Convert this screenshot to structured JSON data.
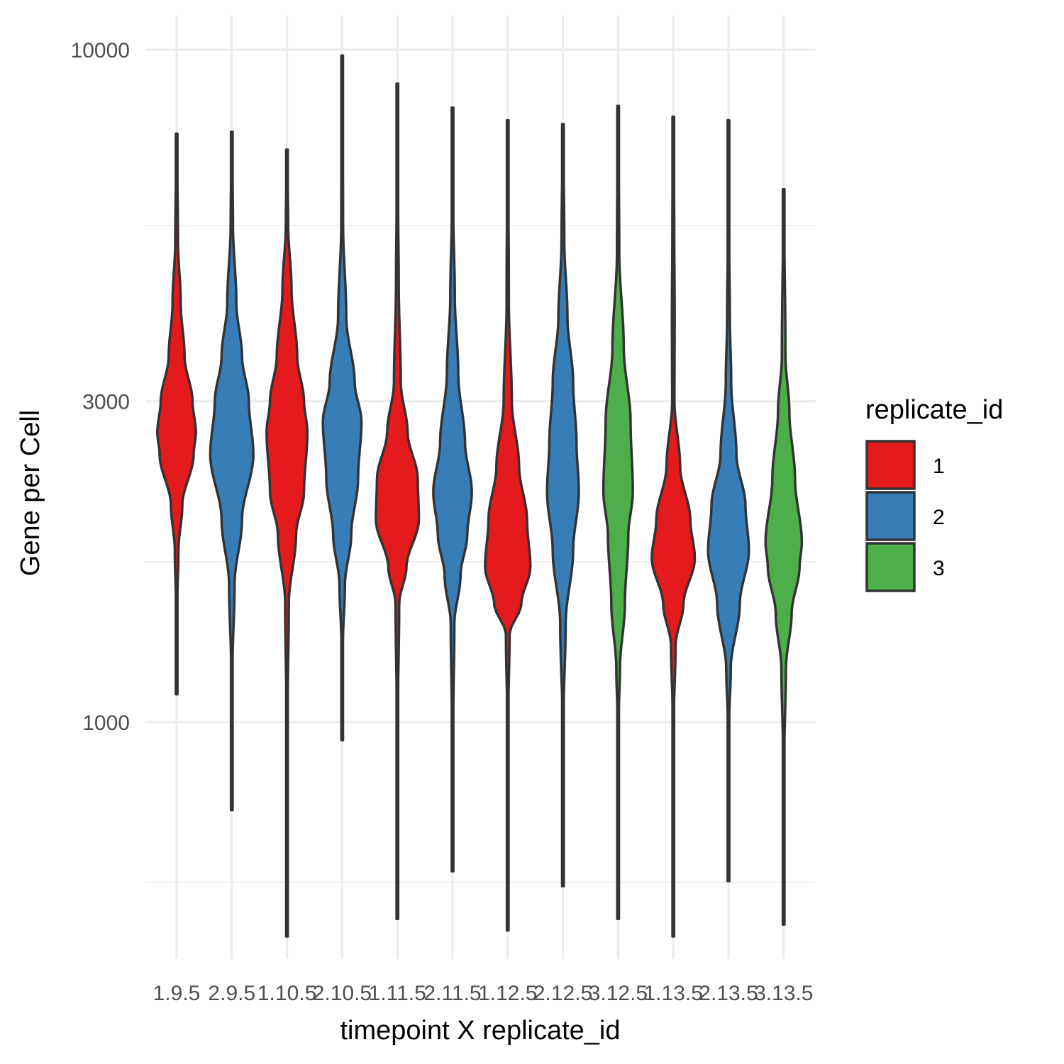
{
  "chart_data": {
    "type": "violin",
    "xlabel": "timepoint X replicate_id",
    "ylabel": "Gene per Cell",
    "y_scale": "log10",
    "ylim": [
      400,
      11000
    ],
    "y_ticks": [
      {
        "value": 1000,
        "label": "1000"
      },
      {
        "value": 3000,
        "label": "3000"
      },
      {
        "value": 10000,
        "label": "10000"
      }
    ],
    "grid": true,
    "legend": {
      "title": "replicate_id",
      "position": "right",
      "entries": [
        {
          "label": "1",
          "color": "#e41a1c"
        },
        {
          "label": "2",
          "color": "#377eb8"
        },
        {
          "label": "3",
          "color": "#4daf4a"
        }
      ]
    },
    "outline_color": "#333333",
    "categories": [
      "1.9.5",
      "2.9.5",
      "1.10.5",
      "2.10.5",
      "1.11.5",
      "2.11.5",
      "1.12.5",
      "2.12.5",
      "3.12.5",
      "1.13.5",
      "2.13.5",
      "3.13.5"
    ],
    "violins": [
      {
        "category": "1.9.5",
        "replicate": "1",
        "min": 1100,
        "max": 7500,
        "profile": [
          [
            1100,
            0.02
          ],
          [
            1500,
            0.03
          ],
          [
            1800,
            0.08
          ],
          [
            2100,
            0.25
          ],
          [
            2500,
            0.75
          ],
          [
            2700,
            0.85
          ],
          [
            3000,
            0.7
          ],
          [
            3500,
            0.35
          ],
          [
            4200,
            0.18
          ],
          [
            5200,
            0.06
          ],
          [
            7500,
            0.01
          ]
        ]
      },
      {
        "category": "2.9.5",
        "replicate": "2",
        "min": 740,
        "max": 7550,
        "profile": [
          [
            740,
            0.02
          ],
          [
            1200,
            0.03
          ],
          [
            1600,
            0.12
          ],
          [
            2000,
            0.45
          ],
          [
            2500,
            0.95
          ],
          [
            3000,
            0.75
          ],
          [
            3500,
            0.45
          ],
          [
            4200,
            0.2
          ],
          [
            5500,
            0.05
          ],
          [
            7550,
            0.01
          ]
        ]
      },
      {
        "category": "1.10.5",
        "replicate": "1",
        "min": 480,
        "max": 7100,
        "profile": [
          [
            480,
            0.02
          ],
          [
            1000,
            0.02
          ],
          [
            1500,
            0.08
          ],
          [
            1900,
            0.4
          ],
          [
            2200,
            0.75
          ],
          [
            2700,
            0.9
          ],
          [
            3000,
            0.75
          ],
          [
            3500,
            0.45
          ],
          [
            4400,
            0.2
          ],
          [
            5500,
            0.05
          ],
          [
            7100,
            0.01
          ]
        ]
      },
      {
        "category": "2.10.5",
        "replicate": "2",
        "min": 940,
        "max": 9800,
        "profile": [
          [
            940,
            0.02
          ],
          [
            1300,
            0.03
          ],
          [
            1600,
            0.12
          ],
          [
            1900,
            0.4
          ],
          [
            2300,
            0.7
          ],
          [
            2800,
            0.85
          ],
          [
            3200,
            0.55
          ],
          [
            4000,
            0.18
          ],
          [
            5500,
            0.04
          ],
          [
            9800,
            0.01
          ]
        ]
      },
      {
        "category": "1.11.5",
        "replicate": "1",
        "min": 510,
        "max": 8900,
        "profile": [
          [
            510,
            0.02
          ],
          [
            1000,
            0.02
          ],
          [
            1500,
            0.08
          ],
          [
            1700,
            0.4
          ],
          [
            2000,
            0.95
          ],
          [
            2300,
            0.9
          ],
          [
            2700,
            0.45
          ],
          [
            3200,
            0.15
          ],
          [
            4500,
            0.06
          ],
          [
            6000,
            0.03
          ],
          [
            8900,
            0.01
          ]
        ]
      },
      {
        "category": "2.11.5",
        "replicate": "2",
        "min": 600,
        "max": 8200,
        "profile": [
          [
            600,
            0.02
          ],
          [
            1000,
            0.03
          ],
          [
            1400,
            0.08
          ],
          [
            1650,
            0.35
          ],
          [
            1900,
            0.65
          ],
          [
            2200,
            0.85
          ],
          [
            2600,
            0.55
          ],
          [
            3300,
            0.25
          ],
          [
            4300,
            0.1
          ],
          [
            5800,
            0.03
          ],
          [
            8200,
            0.01
          ]
        ]
      },
      {
        "category": "1.12.5",
        "replicate": "1",
        "min": 490,
        "max": 7850,
        "profile": [
          [
            490,
            0.02
          ],
          [
            1000,
            0.02
          ],
          [
            1350,
            0.08
          ],
          [
            1500,
            0.6
          ],
          [
            1700,
            1.0
          ],
          [
            2000,
            0.85
          ],
          [
            2400,
            0.5
          ],
          [
            3000,
            0.18
          ],
          [
            4200,
            0.05
          ],
          [
            7850,
            0.01
          ]
        ]
      },
      {
        "category": "2.12.5",
        "replicate": "2",
        "min": 570,
        "max": 7750,
        "profile": [
          [
            570,
            0.02
          ],
          [
            1000,
            0.02
          ],
          [
            1400,
            0.12
          ],
          [
            1800,
            0.45
          ],
          [
            2200,
            0.7
          ],
          [
            2600,
            0.6
          ],
          [
            3200,
            0.45
          ],
          [
            4000,
            0.2
          ],
          [
            5200,
            0.06
          ],
          [
            7750,
            0.01
          ]
        ]
      },
      {
        "category": "3.12.5",
        "replicate": "3",
        "min": 510,
        "max": 8250,
        "profile": [
          [
            510,
            0.02
          ],
          [
            1000,
            0.02
          ],
          [
            1200,
            0.08
          ],
          [
            1500,
            0.3
          ],
          [
            1900,
            0.45
          ],
          [
            2200,
            0.65
          ],
          [
            2800,
            0.55
          ],
          [
            3600,
            0.25
          ],
          [
            5000,
            0.05
          ],
          [
            8250,
            0.01
          ]
        ]
      },
      {
        "category": "1.13.5",
        "replicate": "1",
        "min": 480,
        "max": 7950,
        "profile": [
          [
            480,
            0.02
          ],
          [
            1000,
            0.02
          ],
          [
            1300,
            0.1
          ],
          [
            1500,
            0.45
          ],
          [
            1750,
            0.95
          ],
          [
            2000,
            0.75
          ],
          [
            2400,
            0.3
          ],
          [
            3000,
            0.05
          ],
          [
            4000,
            0.06
          ],
          [
            5500,
            0.04
          ],
          [
            7950,
            0.01
          ]
        ]
      },
      {
        "category": "2.13.5",
        "replicate": "2",
        "min": 580,
        "max": 7850,
        "profile": [
          [
            580,
            0.02
          ],
          [
            1000,
            0.03
          ],
          [
            1200,
            0.1
          ],
          [
            1500,
            0.5
          ],
          [
            1800,
            0.9
          ],
          [
            2100,
            0.75
          ],
          [
            2500,
            0.35
          ],
          [
            3200,
            0.12
          ],
          [
            4000,
            0.06
          ],
          [
            5500,
            0.02
          ],
          [
            7850,
            0.01
          ]
        ]
      },
      {
        "category": "3.13.5",
        "replicate": "3",
        "min": 500,
        "max": 6200,
        "profile": [
          [
            500,
            0.02
          ],
          [
            900,
            0.03
          ],
          [
            1200,
            0.1
          ],
          [
            1450,
            0.35
          ],
          [
            1700,
            0.7
          ],
          [
            1850,
            0.8
          ],
          [
            2300,
            0.5
          ],
          [
            2900,
            0.25
          ],
          [
            3500,
            0.08
          ],
          [
            6200,
            0.01
          ]
        ]
      }
    ]
  }
}
